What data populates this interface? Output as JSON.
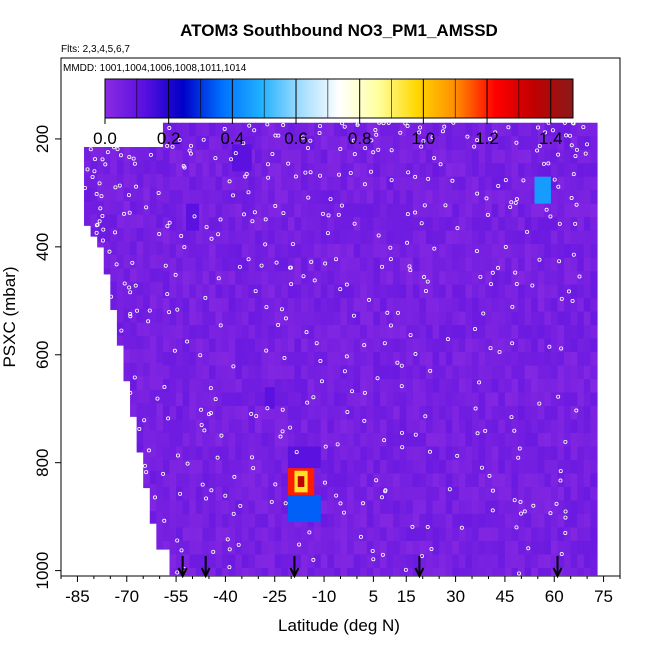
{
  "chart_data": {
    "type": "heatmap",
    "title": "ATOM3 Southbound NO3_PM1_AMSSD",
    "flights_note": "Flts: 2,3,4,5,6,7",
    "dates_note": "MMDD: 1001,1004,1006,1008,1011,1014",
    "xlabel": "Latitude (deg N)",
    "ylabel": "PSXC (mbar)",
    "xlim": [
      -90,
      80
    ],
    "ylim": [
      1010,
      50
    ],
    "x_ticks": [
      -85,
      -70,
      -55,
      -40,
      -25,
      -10,
      5,
      15,
      30,
      45,
      60,
      75
    ],
    "x_tick_labels": [
      "-85",
      "-70",
      "-55",
      "-40",
      "-25",
      "-10",
      "5",
      "15",
      "30",
      "45",
      "60",
      "75"
    ],
    "y_ticks": [
      200,
      400,
      600,
      800,
      1000
    ],
    "y_tick_labels": [
      "200",
      "400",
      "600",
      "800",
      "1000"
    ],
    "colorbar": {
      "range": [
        0.0,
        1.47
      ],
      "ticks": [
        0.0,
        0.2,
        0.4,
        0.6,
        0.8,
        1.0,
        1.2,
        1.4
      ],
      "tick_labels": [
        "0.0",
        "0.2",
        "0.4",
        "0.6",
        "0.8",
        "1.0",
        "1.2",
        "1.4"
      ],
      "colors": [
        "#8a2be2",
        "#5a10e0",
        "#0000c8",
        "#0070ff",
        "#20b0ff",
        "#a0dcff",
        "#ffffff",
        "#ffffa0",
        "#ffd700",
        "#ff8c00",
        "#ff0000",
        "#c00000",
        "#8b1a1a"
      ]
    },
    "background_value": 0.05,
    "profile_markers_lat": [
      -53,
      -46,
      -19,
      19,
      61
    ],
    "highlights": [
      {
        "lat_range": [
          -21,
          -13
        ],
        "p_range": [
          810,
          860
        ],
        "value": 1.2
      },
      {
        "lat_range": [
          -21,
          -11
        ],
        "p_range": [
          860,
          910
        ],
        "value": 0.35
      },
      {
        "lat_range": [
          -21,
          -11
        ],
        "p_range": [
          770,
          810
        ],
        "value": 0.12
      },
      {
        "lat_range": [
          54,
          59
        ],
        "p_range": [
          270,
          320
        ],
        "value": 0.45
      },
      {
        "lat_range": [
          -28,
          -25
        ],
        "p_range": [
          660,
          700
        ],
        "value": 0.12
      },
      {
        "lat_range": [
          -38,
          -32
        ],
        "p_range": [
          210,
          260
        ],
        "value": 0.12
      },
      {
        "lat_range": [
          -52,
          -48
        ],
        "p_range": [
          320,
          370
        ],
        "value": 0.12
      }
    ]
  }
}
